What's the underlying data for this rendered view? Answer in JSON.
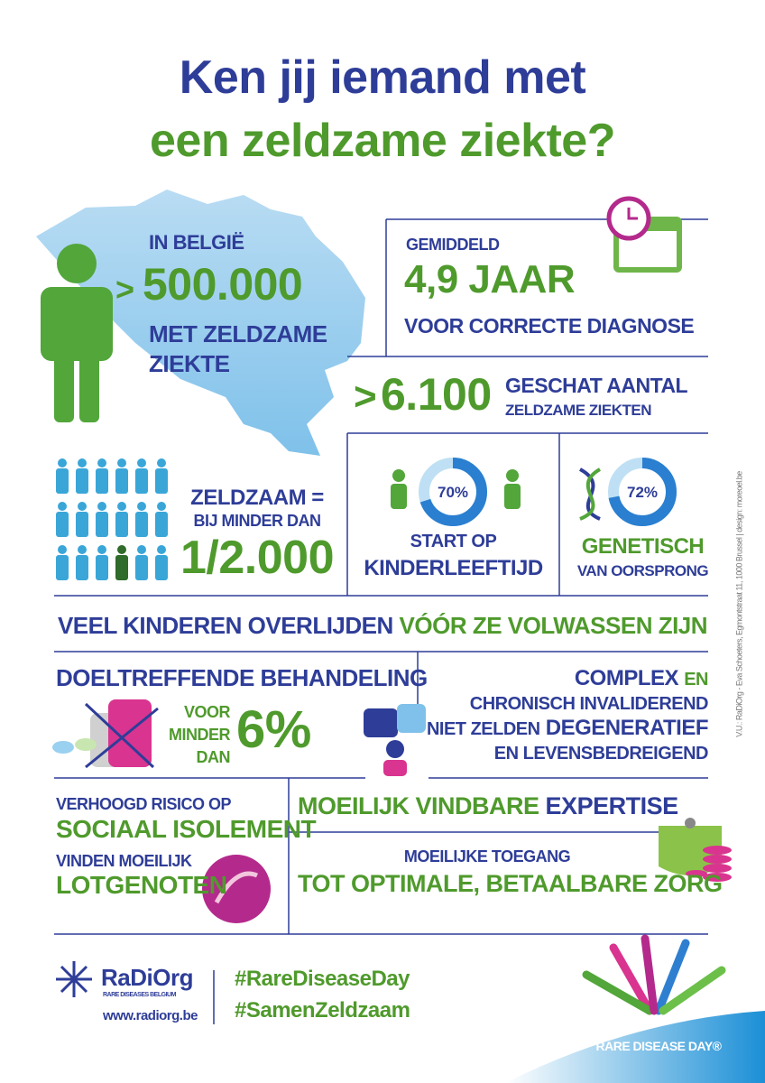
{
  "title": {
    "line1": "Ken jij iemand met",
    "line2": "een zeldzame ziekte?"
  },
  "belgium": {
    "prefix": "IN BELGIË",
    "symbol": ">",
    "number": "500.000",
    "line1": "MET ZELDZAME",
    "line2": "ZIEKTE"
  },
  "diagnosis": {
    "prefix": "GEMIDDELD",
    "number": "4,9 JAAR",
    "suffix": "VOOR CORRECTE DIAGNOSE"
  },
  "diseases": {
    "symbol": ">",
    "number": "6.100",
    "line1": "GESCHAT AANTAL",
    "line2": "ZELDZAME ZIEKTEN"
  },
  "rare": {
    "line1": "ZELDZAAM =",
    "line2": "BIJ MINDER DAN",
    "number": "1/2.000"
  },
  "childhood": {
    "donut": {
      "value": 70,
      "label": "70%"
    },
    "line1": "START OP",
    "line2": "KINDERLEEFTIJD"
  },
  "genetic": {
    "donut": {
      "value": 72,
      "label": "72%"
    },
    "line1": "GENETISCH",
    "line2": "VAN OORSPRONG"
  },
  "banner": {
    "part1": "VEEL KINDEREN OVERLIJDEN",
    "part2": "VÓÓR ZE VOLWASSEN ZIJN"
  },
  "treatment": {
    "title": "DOELTREFFENDE BEHANDELING",
    "qualifier": [
      "VOOR",
      "MINDER",
      "DAN"
    ],
    "number": "6%"
  },
  "complex": {
    "line1a": "COMPLEX",
    "line1b": "EN",
    "line2": "CHRONISCH INVALIDEREND",
    "line3a": "NIET ZELDEN",
    "line3b": "DEGENERATIEF",
    "line4": "EN LEVENSBEDREIGEND"
  },
  "isolation": {
    "line1": "VERHOOGD RISICO OP",
    "line2": "SOCIAAL ISOLEMENT",
    "line3": "VINDEN MOEILIJK",
    "line4": "LOTGENOTEN"
  },
  "expertise": {
    "part1": "MOEILIJK VINDBARE",
    "part2": "EXPERTISE"
  },
  "access": {
    "line1": "MOEILIJKE TOEGANG",
    "line2": "TOT OPTIMALE, BETAALBARE ZORG"
  },
  "footer": {
    "logo": "RaDiOrg",
    "logo_sub": "RARE DISEASES BELGIUM",
    "url": "www.radiorg.be",
    "hashtags": [
      "#RareDiseaseDay",
      "#SamenZeldzaam"
    ],
    "rdd": "RARE DISEASE DAY®",
    "credit": "V.U.: RaDiOrg - Eva Schoeters, Egmontstraat 11, 1000 Brussel  |  design: moreoel.be"
  }
}
